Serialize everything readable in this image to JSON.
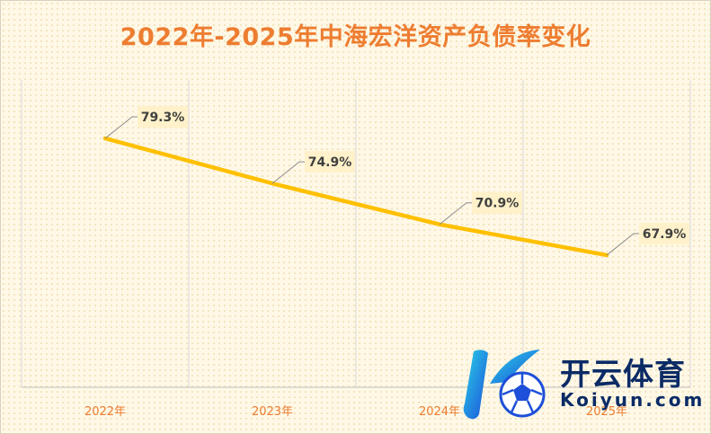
{
  "chart_data": {
    "type": "line",
    "title": "2022年-2025年中海宏洋资产负债率变化",
    "categories": [
      "2022年",
      "2023年",
      "2024年",
      "2025年"
    ],
    "series": [
      {
        "values": [
          79.3,
          74.9,
          70.9,
          67.9
        ],
        "labels": [
          "79.3%",
          "74.9%",
          "70.9%",
          "67.9%"
        ]
      }
    ],
    "ylim": [
      55,
      85
    ],
    "grid": "vertical",
    "line_color": "#ffc000",
    "accent_color": "#ed7d31"
  },
  "watermark": {
    "cn": "开云体育",
    "en": "Koiyun.com"
  }
}
